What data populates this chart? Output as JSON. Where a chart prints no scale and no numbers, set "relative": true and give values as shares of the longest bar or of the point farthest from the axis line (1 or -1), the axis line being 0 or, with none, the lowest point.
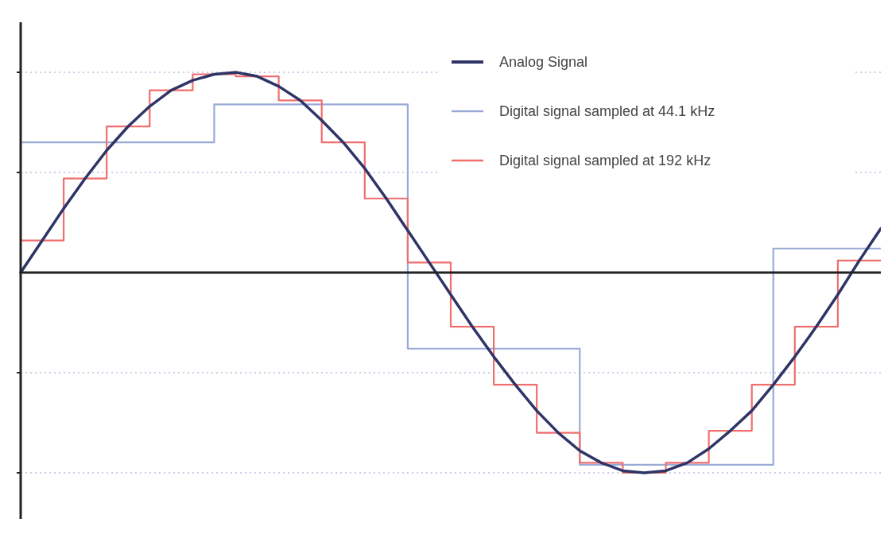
{
  "chart_data": {
    "type": "line",
    "relative": true,
    "legend": "top right",
    "categories": [
      null,
      null,
      null,
      null,
      null,
      null,
      null,
      null,
      null,
      null,
      null,
      null,
      null,
      null,
      null,
      null,
      null,
      null,
      null,
      null,
      null,
      null,
      null,
      null,
      null,
      null,
      null,
      null,
      null,
      null,
      null,
      null,
      null,
      null,
      null,
      null,
      null,
      null,
      null,
      null,
      null
    ],
    "series": [
      {
        "name": "Analog Signal",
        "color": "#2e3566",
        "values": [
          0,
          0.16,
          0.32,
          0.47,
          0.61,
          0.73,
          0.83,
          0.91,
          0.96,
          0.99,
          1.0,
          0.98,
          0.93,
          0.86,
          0.76,
          0.65,
          0.52,
          0.37,
          0.21,
          0.05,
          -0.11,
          -0.27,
          -0.42,
          -0.56,
          -0.69,
          -0.8,
          -0.89,
          -0.95,
          -0.99,
          -1.0,
          -0.99,
          -0.95,
          -0.88,
          -0.79,
          -0.69,
          -0.56,
          -0.42,
          -0.27,
          -0.11,
          0.06,
          0.22
        ]
      },
      {
        "name": "Digital signal sampled at 44.1 kHz",
        "type": "step",
        "color": "#9aaad6",
        "values": [
          0.65,
          0.65,
          0.65,
          0.65,
          0.65,
          0.65,
          0.65,
          0.65,
          0.65,
          0.84,
          0.84,
          0.84,
          0.84,
          0.84,
          0.84,
          0.84,
          0.84,
          0.84,
          -0.38,
          -0.38,
          -0.38,
          -0.38,
          -0.38,
          -0.38,
          -0.38,
          -0.38,
          -0.96,
          -0.96,
          -0.96,
          -0.96,
          -0.96,
          -0.96,
          -0.96,
          -0.96,
          -0.96,
          0.12,
          0.12,
          0.12,
          0.12,
          0.12,
          0.12
        ]
      },
      {
        "name": "Digital signal sampled at 192 kHz",
        "type": "step",
        "color": "#f06e6e",
        "values": [
          0.16,
          0.16,
          0.47,
          0.47,
          0.73,
          0.73,
          0.91,
          0.91,
          0.99,
          0.99,
          0.98,
          0.98,
          0.86,
          0.86,
          0.65,
          0.65,
          0.37,
          0.37,
          0.05,
          0.05,
          -0.27,
          -0.27,
          -0.56,
          -0.56,
          -0.8,
          -0.8,
          -0.95,
          -0.95,
          -1.0,
          -1.0,
          -0.95,
          -0.95,
          -0.79,
          -0.79,
          -0.56,
          -0.56,
          -0.27,
          -0.27,
          0.06,
          0.06,
          0.06
        ]
      }
    ],
    "ref_lines": [
      {
        "axis": "y",
        "value": 1,
        "line_style": "dotted",
        "color": "#c8cfe6"
      },
      {
        "axis": "y",
        "value": 0.5,
        "line_style": "dotted",
        "color": "#c8cfe6"
      },
      {
        "axis": "y",
        "value": -0.5,
        "line_style": "dotted",
        "color": "#c8cfe6"
      },
      {
        "axis": "y",
        "value": -1,
        "line_style": "dotted",
        "color": "#c8cfe6"
      }
    ]
  }
}
